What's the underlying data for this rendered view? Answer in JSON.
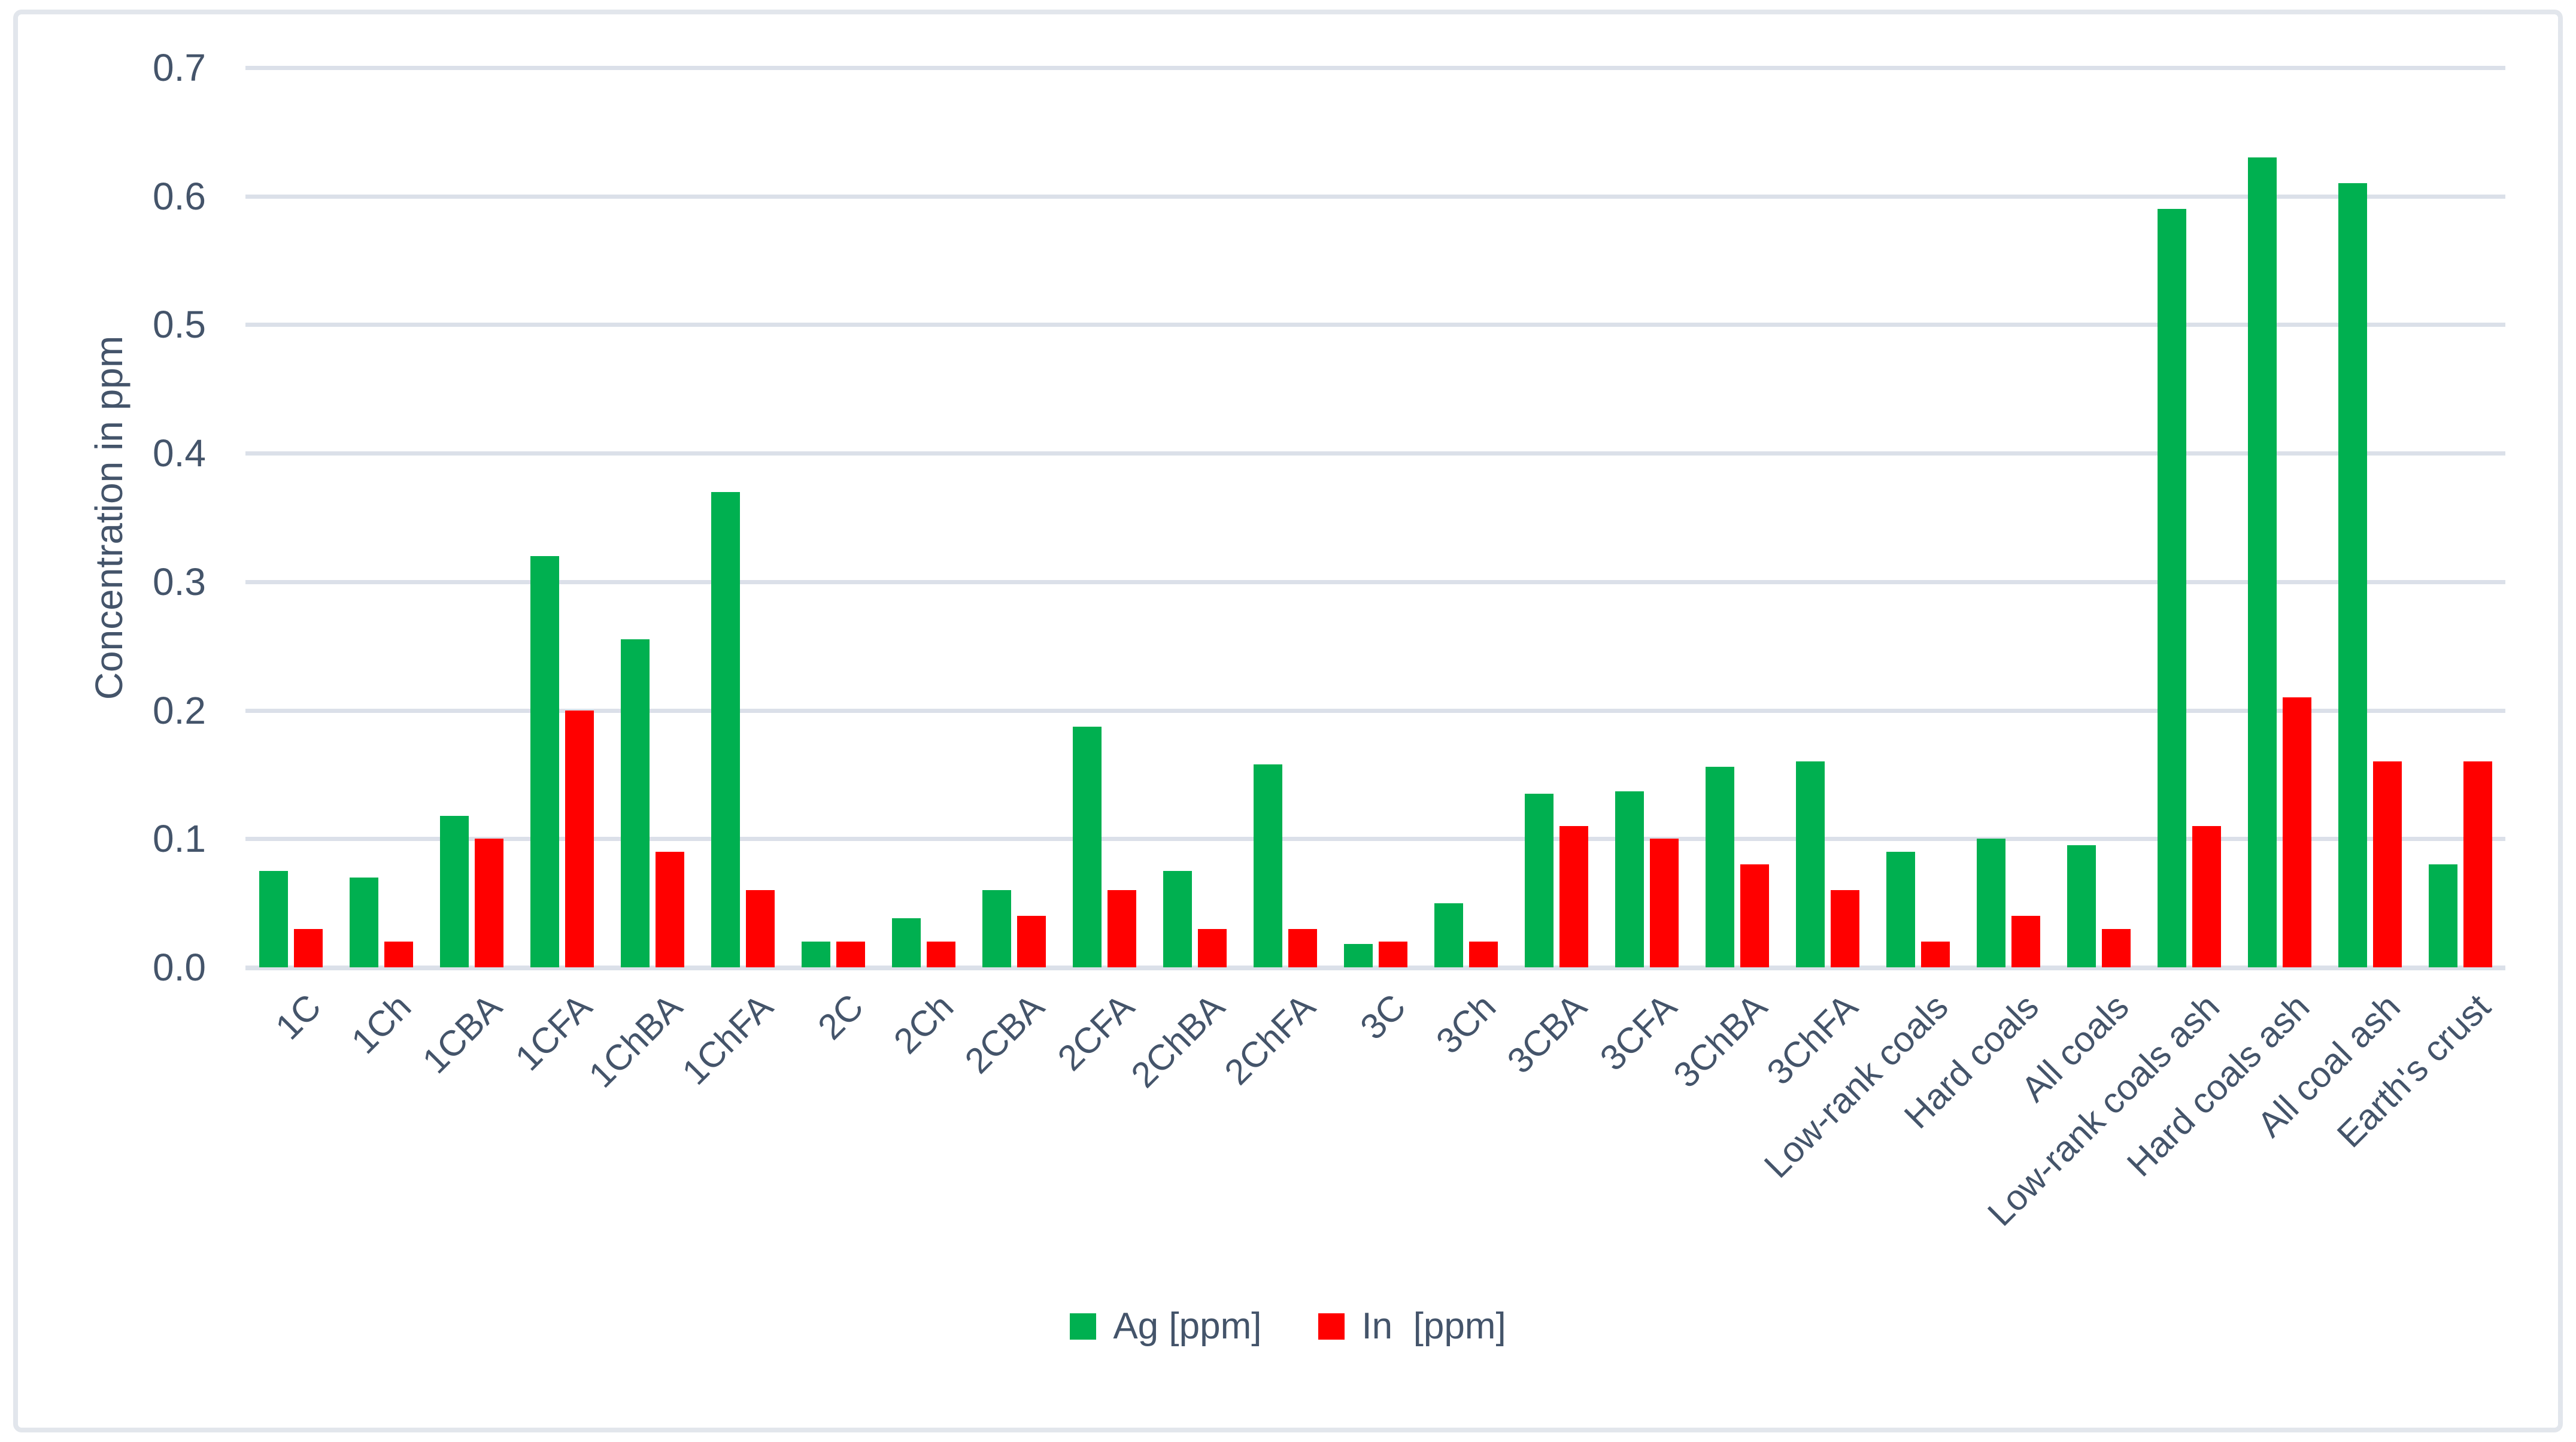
{
  "chart_data": {
    "type": "bar",
    "title": "",
    "xlabel": "",
    "ylabel": "Concentration in ppm",
    "ylim": [
      0,
      0.7
    ],
    "ytick_step": 0.1,
    "ytick_labels": [
      "0.0",
      "0.1",
      "0.2",
      "0.3",
      "0.4",
      "0.5",
      "0.6",
      "0.7"
    ],
    "grid": true,
    "legend_position": "bottom-center",
    "categories": [
      "1C",
      "1Ch",
      "1CBA",
      "1CFA",
      "1ChBA",
      "1ChFA",
      "2C",
      "2Ch",
      "2CBA",
      "2CFA",
      "2ChBA",
      "2ChFA",
      "3C",
      "3Ch",
      "3CBA",
      "3CFA",
      "3ChBA",
      "3ChFA",
      "Low-rank coals",
      "Hard coals",
      "All coals",
      "Low-rank coals ash",
      "Hard coals ash",
      "All coal ash",
      "Earth's crust"
    ],
    "series": [
      {
        "name": "Ag [ppm]",
        "color": "#00B050",
        "values": [
          0.075,
          0.07,
          0.118,
          0.32,
          0.255,
          0.37,
          0.02,
          0.038,
          0.06,
          0.187,
          0.075,
          0.158,
          0.018,
          0.05,
          0.135,
          0.137,
          0.156,
          0.16,
          0.09,
          0.1,
          0.095,
          0.59,
          0.63,
          0.61,
          0.08
        ]
      },
      {
        "name": "In  [ppm]",
        "color": "#FF0000",
        "values": [
          0.03,
          0.02,
          0.1,
          0.2,
          0.09,
          0.06,
          0.02,
          0.02,
          0.04,
          0.06,
          0.03,
          0.03,
          0.02,
          0.02,
          0.11,
          0.1,
          0.08,
          0.06,
          0.02,
          0.04,
          0.03,
          0.11,
          0.21,
          0.16,
          0.16
        ]
      }
    ]
  },
  "colors": {
    "ag_series": "#00B050",
    "in_series": "#FF0000",
    "axis_text": "#44546a",
    "gridline": "#dbe0e9",
    "frame_border": "#e2e6ec",
    "background": "#ffffff"
  }
}
